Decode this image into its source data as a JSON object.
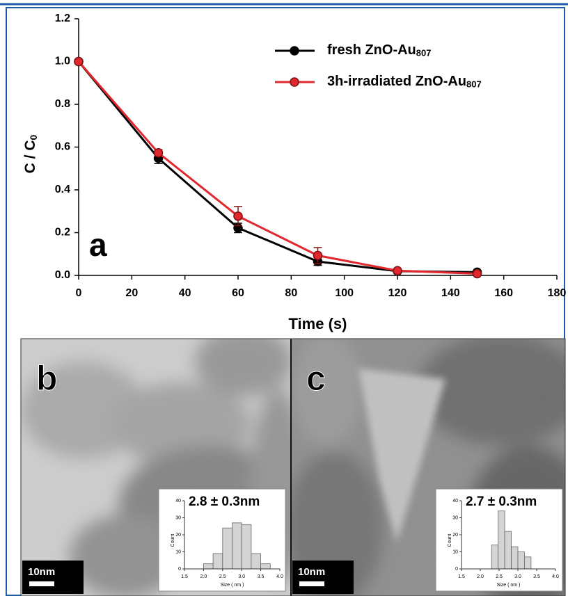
{
  "chart_data": [
    {
      "type": "line",
      "panel_label": "a",
      "xlabel": "Time (s)",
      "ylabel": "C / C",
      "ylabel_subscript": "0",
      "x": [
        0,
        30,
        60,
        90,
        120,
        150
      ],
      "series": [
        {
          "name": "fresh ZnO-Au",
          "name_subscript": "807",
          "color": "#000000",
          "values": [
            1.0,
            0.548,
            0.222,
            0.065,
            0.02,
            0.015
          ],
          "errors": [
            0.01,
            0.025,
            0.022,
            0.018,
            0.008,
            0.008
          ]
        },
        {
          "name": "3h-irradiated ZnO-Au",
          "name_subscript": "807",
          "color": "#e0282e",
          "values": [
            1.0,
            0.573,
            0.277,
            0.093,
            0.022,
            0.008
          ],
          "errors": [
            0.008,
            0.015,
            0.045,
            0.037,
            0.008,
            0.005
          ]
        }
      ],
      "xlim": [
        0,
        180
      ],
      "xticks": [
        0,
        20,
        40,
        60,
        80,
        100,
        120,
        140,
        160,
        180
      ],
      "ylim": [
        0,
        1.2
      ],
      "yticks": [
        {
          "value": 0,
          "label": "0.0"
        },
        0.2,
        0.4,
        0.6,
        0.8,
        {
          "value": 1,
          "label": "1.0"
        },
        1.2
      ]
    },
    {
      "type": "histogram",
      "panel_label": "b",
      "scale_bar": "10nm",
      "title": "2.8 ± 0.3nm",
      "xlabel": "Size ( nm )",
      "ylabel": "Count",
      "color": "#d4d4d4",
      "bins": [
        2.0,
        2.25,
        2.5,
        2.75,
        3.0,
        3.25,
        3.5,
        3.75
      ],
      "values": [
        3,
        9,
        24,
        27,
        26,
        9,
        3
      ],
      "xlim": [
        1.5,
        4.0
      ],
      "xticks": [
        1.5,
        {
          "value": 2,
          "label": "2.0"
        },
        2.5,
        {
          "value": 3,
          "label": "3.0"
        },
        3.5,
        {
          "value": 4,
          "label": "4.0"
        }
      ],
      "ylim": [
        0,
        40
      ],
      "yticks": [
        0,
        10,
        20,
        30,
        40
      ]
    },
    {
      "type": "histogram",
      "panel_label": "c",
      "scale_bar": "10nm",
      "title": "2.7 ± 0.3nm",
      "xlabel": "Size ( nm )",
      "ylabel": "Count",
      "color": "#d4d4d4",
      "bins": [
        2.3,
        2.475,
        2.65,
        2.825,
        3.0,
        3.175,
        3.35
      ],
      "values": [
        14,
        34,
        22,
        13,
        10,
        7
      ],
      "xlim": [
        1.5,
        4.0
      ],
      "xticks": [
        1.5,
        {
          "value": 2,
          "label": "2.0"
        },
        2.5,
        {
          "value": 3,
          "label": "3.0"
        },
        3.5,
        {
          "value": 4,
          "label": "4.0"
        }
      ],
      "ylim": [
        0,
        40
      ],
      "yticks": [
        0,
        10,
        20,
        30,
        40
      ]
    }
  ]
}
